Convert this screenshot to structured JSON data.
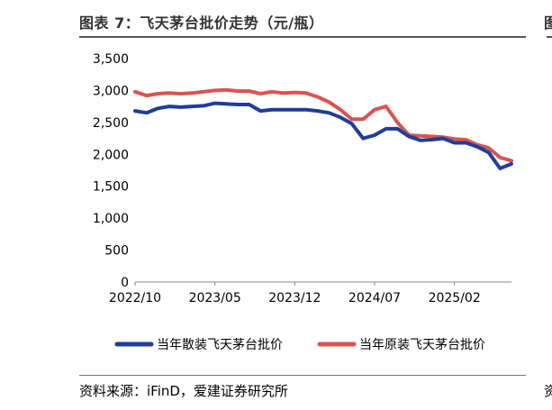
{
  "header": {
    "title": "图表 7：飞天茅台批价走势（元/瓶）"
  },
  "footer": {
    "source": "资料来源：iFinD，爱建证券研究所"
  },
  "adjacent_panel": {
    "title_glyph": "图",
    "source_glyph": "资"
  },
  "colors": {
    "series_blue": "#1f3d99",
    "series_red": "#d9534f",
    "axis": "#888888",
    "text": "#333333"
  },
  "chart_data": {
    "type": "line",
    "title": "图表 7：飞天茅台批价走势（元/瓶）",
    "xlabel": "",
    "ylabel": "",
    "x_tick_labels": [
      "2022/10",
      "2023/05",
      "2023/12",
      "2024/07",
      "2025/02"
    ],
    "y_tick_labels": [
      "0",
      "500",
      "1,000",
      "1,500",
      "2,000",
      "2,500",
      "3,000",
      "3,500"
    ],
    "ylim": [
      0,
      3500
    ],
    "xlim": [
      "2022-10",
      "2025-07"
    ],
    "grid": false,
    "legend_position": "bottom",
    "series": [
      {
        "name": "当年散装飞天茅台批价",
        "color": "#1f3d99",
        "points": [
          [
            "2022-10",
            2680
          ],
          [
            "2022-11",
            2650
          ],
          [
            "2022-12",
            2720
          ],
          [
            "2023-01",
            2750
          ],
          [
            "2023-02",
            2740
          ],
          [
            "2023-03",
            2750
          ],
          [
            "2023-04",
            2760
          ],
          [
            "2023-05",
            2800
          ],
          [
            "2023-06",
            2790
          ],
          [
            "2023-07",
            2780
          ],
          [
            "2023-08",
            2780
          ],
          [
            "2023-09",
            2680
          ],
          [
            "2023-10",
            2700
          ],
          [
            "2023-11",
            2700
          ],
          [
            "2023-12",
            2700
          ],
          [
            "2024-01",
            2700
          ],
          [
            "2024-02",
            2680
          ],
          [
            "2024-03",
            2650
          ],
          [
            "2024-04",
            2580
          ],
          [
            "2024-05",
            2480
          ],
          [
            "2024-06",
            2250
          ],
          [
            "2024-07",
            2300
          ],
          [
            "2024-08",
            2400
          ],
          [
            "2024-09",
            2400
          ],
          [
            "2024-10",
            2280
          ],
          [
            "2024-11",
            2220
          ],
          [
            "2024-12",
            2230
          ],
          [
            "2025-01",
            2250
          ],
          [
            "2025-02",
            2180
          ],
          [
            "2025-03",
            2180
          ],
          [
            "2025-04",
            2120
          ],
          [
            "2025-05",
            2030
          ],
          [
            "2025-06",
            1780
          ],
          [
            "2025-07",
            1850
          ]
        ]
      },
      {
        "name": "当年原装飞天茅台批价",
        "color": "#d9534f",
        "points": [
          [
            "2022-10",
            2980
          ],
          [
            "2022-11",
            2920
          ],
          [
            "2022-12",
            2950
          ],
          [
            "2023-01",
            2960
          ],
          [
            "2023-02",
            2950
          ],
          [
            "2023-03",
            2960
          ],
          [
            "2023-04",
            2980
          ],
          [
            "2023-05",
            3000
          ],
          [
            "2023-06",
            3010
          ],
          [
            "2023-07",
            2990
          ],
          [
            "2023-08",
            2990
          ],
          [
            "2023-09",
            2950
          ],
          [
            "2023-10",
            2980
          ],
          [
            "2023-11",
            2960
          ],
          [
            "2023-12",
            2970
          ],
          [
            "2024-01",
            2960
          ],
          [
            "2024-02",
            2900
          ],
          [
            "2024-03",
            2820
          ],
          [
            "2024-04",
            2700
          ],
          [
            "2024-05",
            2550
          ],
          [
            "2024-06",
            2550
          ],
          [
            "2024-07",
            2700
          ],
          [
            "2024-08",
            2750
          ],
          [
            "2024-09",
            2500
          ],
          [
            "2024-10",
            2300
          ],
          [
            "2024-11",
            2290
          ],
          [
            "2024-12",
            2280
          ],
          [
            "2025-01",
            2270
          ],
          [
            "2025-02",
            2240
          ],
          [
            "2025-03",
            2230
          ],
          [
            "2025-04",
            2150
          ],
          [
            "2025-05",
            2100
          ],
          [
            "2025-06",
            1950
          ],
          [
            "2025-07",
            1900
          ]
        ]
      }
    ]
  }
}
